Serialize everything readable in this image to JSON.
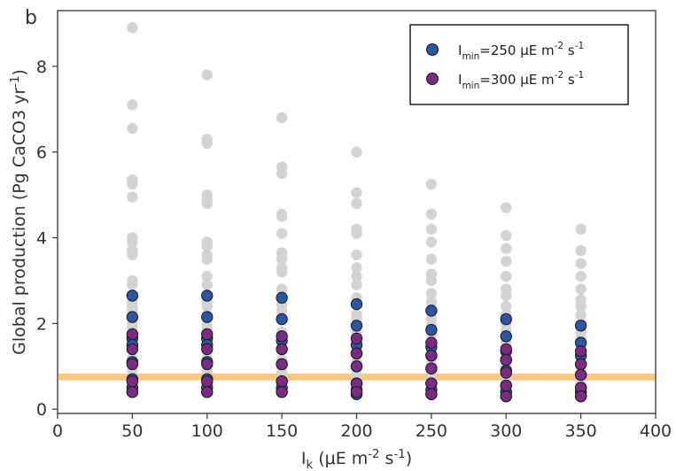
{
  "panel_label": "b",
  "chart_data": {
    "type": "scatter",
    "xlabel": "I_k (μE m^-2 s^-1)",
    "ylabel": "Global production (Pg CaCO3 yr^-1)",
    "xlim": [
      0,
      400
    ],
    "ylim": [
      -0.1,
      9.3
    ],
    "xticks": [
      0,
      50,
      100,
      150,
      200,
      250,
      300,
      350,
      400
    ],
    "yticks": [
      0,
      2,
      4,
      6,
      8
    ],
    "grid": false,
    "legend_position": "top-right",
    "reference_band": {
      "y": 0.75,
      "half_width": 0.08,
      "color": "#fdc77e"
    },
    "series": [
      {
        "color": "#d3d3d3",
        "points": [
          [
            50,
            8.9
          ],
          [
            50,
            7.1
          ],
          [
            50,
            6.55
          ],
          [
            50,
            5.35
          ],
          [
            50,
            5.25
          ],
          [
            50,
            4.95
          ],
          [
            50,
            4.0
          ],
          [
            50,
            3.9
          ],
          [
            50,
            3.7
          ],
          [
            50,
            3.6
          ],
          [
            50,
            3.0
          ],
          [
            50,
            2.9
          ],
          [
            50,
            2.5
          ],
          [
            50,
            2.4
          ],
          [
            50,
            2.3
          ],
          [
            50,
            2.0
          ],
          [
            50,
            1.9
          ],
          [
            50,
            1.2
          ],
          [
            50,
            1.05
          ],
          [
            50,
            0.9
          ],
          [
            50,
            0.55
          ],
          [
            100,
            7.8
          ],
          [
            100,
            6.3
          ],
          [
            100,
            6.2
          ],
          [
            100,
            5.0
          ],
          [
            100,
            4.9
          ],
          [
            100,
            4.8
          ],
          [
            100,
            3.9
          ],
          [
            100,
            3.8
          ],
          [
            100,
            3.6
          ],
          [
            100,
            3.5
          ],
          [
            100,
            3.1
          ],
          [
            100,
            2.9
          ],
          [
            100,
            2.5
          ],
          [
            100,
            2.4
          ],
          [
            100,
            2.2
          ],
          [
            100,
            1.95
          ],
          [
            100,
            1.85
          ],
          [
            100,
            1.2
          ],
          [
            100,
            1.05
          ],
          [
            100,
            0.9
          ],
          [
            100,
            0.55
          ],
          [
            150,
            6.8
          ],
          [
            150,
            5.65
          ],
          [
            150,
            5.5
          ],
          [
            150,
            4.55
          ],
          [
            150,
            4.5
          ],
          [
            150,
            4.1
          ],
          [
            150,
            3.65
          ],
          [
            150,
            3.5
          ],
          [
            150,
            3.3
          ],
          [
            150,
            3.2
          ],
          [
            150,
            2.8
          ],
          [
            150,
            2.6
          ],
          [
            150,
            2.45
          ],
          [
            150,
            2.3
          ],
          [
            150,
            2.1
          ],
          [
            150,
            1.8
          ],
          [
            150,
            1.7
          ],
          [
            150,
            1.15
          ],
          [
            150,
            1.0
          ],
          [
            150,
            0.85
          ],
          [
            150,
            0.5
          ],
          [
            200,
            6.0
          ],
          [
            200,
            5.05
          ],
          [
            200,
            4.8
          ],
          [
            200,
            4.2
          ],
          [
            200,
            4.1
          ],
          [
            200,
            3.6
          ],
          [
            200,
            3.3
          ],
          [
            200,
            3.1
          ],
          [
            200,
            2.9
          ],
          [
            200,
            2.6
          ],
          [
            200,
            2.45
          ],
          [
            200,
            2.2
          ],
          [
            200,
            2.1
          ],
          [
            200,
            1.8
          ],
          [
            200,
            1.6
          ],
          [
            200,
            1.45
          ],
          [
            200,
            1.1
          ],
          [
            200,
            0.95
          ],
          [
            200,
            0.8
          ],
          [
            200,
            0.5
          ],
          [
            250,
            5.25
          ],
          [
            250,
            4.55
          ],
          [
            250,
            4.2
          ],
          [
            250,
            3.9
          ],
          [
            250,
            3.5
          ],
          [
            250,
            3.15
          ],
          [
            250,
            3.0
          ],
          [
            250,
            2.7
          ],
          [
            250,
            2.5
          ],
          [
            250,
            2.3
          ],
          [
            250,
            2.1
          ],
          [
            250,
            1.95
          ],
          [
            250,
            1.75
          ],
          [
            250,
            1.5
          ],
          [
            250,
            1.35
          ],
          [
            250,
            1.05
          ],
          [
            250,
            0.9
          ],
          [
            250,
            0.75
          ],
          [
            250,
            0.45
          ],
          [
            300,
            4.7
          ],
          [
            300,
            4.05
          ],
          [
            300,
            3.75
          ],
          [
            300,
            3.45
          ],
          [
            300,
            3.1
          ],
          [
            300,
            2.8
          ],
          [
            300,
            2.65
          ],
          [
            300,
            2.4
          ],
          [
            300,
            2.2
          ],
          [
            300,
            2.0
          ],
          [
            300,
            1.85
          ],
          [
            300,
            1.7
          ],
          [
            300,
            1.55
          ],
          [
            300,
            1.35
          ],
          [
            300,
            1.2
          ],
          [
            300,
            1.0
          ],
          [
            300,
            0.8
          ],
          [
            300,
            0.65
          ],
          [
            300,
            0.4
          ],
          [
            350,
            4.2
          ],
          [
            350,
            3.7
          ],
          [
            350,
            3.4
          ],
          [
            350,
            3.1
          ],
          [
            350,
            2.8
          ],
          [
            350,
            2.55
          ],
          [
            350,
            2.4
          ],
          [
            350,
            2.2
          ],
          [
            350,
            2.0
          ],
          [
            350,
            1.8
          ],
          [
            350,
            1.65
          ],
          [
            350,
            1.5
          ],
          [
            350,
            1.4
          ],
          [
            350,
            1.2
          ],
          [
            350,
            1.05
          ],
          [
            350,
            0.9
          ],
          [
            350,
            0.75
          ],
          [
            350,
            0.6
          ],
          [
            350,
            0.35
          ]
        ]
      },
      {
        "name": "I_min=250 μE m^-2 s^-1",
        "color": "#2b56a4",
        "points": [
          [
            50,
            2.65
          ],
          [
            50,
            2.15
          ],
          [
            50,
            1.65
          ],
          [
            50,
            1.5
          ],
          [
            50,
            1.1
          ],
          [
            50,
            0.7
          ],
          [
            50,
            0.5
          ],
          [
            50,
            0.4
          ],
          [
            100,
            2.65
          ],
          [
            100,
            2.15
          ],
          [
            100,
            1.65
          ],
          [
            100,
            1.5
          ],
          [
            100,
            1.1
          ],
          [
            100,
            0.7
          ],
          [
            100,
            0.5
          ],
          [
            100,
            0.4
          ],
          [
            150,
            2.6
          ],
          [
            150,
            2.1
          ],
          [
            150,
            1.6
          ],
          [
            150,
            1.4
          ],
          [
            150,
            1.05
          ],
          [
            150,
            0.65
          ],
          [
            150,
            0.5
          ],
          [
            150,
            0.4
          ],
          [
            200,
            2.45
          ],
          [
            200,
            1.95
          ],
          [
            200,
            1.5
          ],
          [
            200,
            1.3
          ],
          [
            200,
            1.0
          ],
          [
            200,
            0.6
          ],
          [
            200,
            0.45
          ],
          [
            200,
            0.35
          ],
          [
            250,
            2.3
          ],
          [
            250,
            1.85
          ],
          [
            250,
            1.45
          ],
          [
            250,
            1.25
          ],
          [
            250,
            0.95
          ],
          [
            250,
            0.6
          ],
          [
            250,
            0.45
          ],
          [
            250,
            0.35
          ],
          [
            300,
            2.1
          ],
          [
            300,
            1.7
          ],
          [
            300,
            1.35
          ],
          [
            300,
            1.15
          ],
          [
            300,
            0.9
          ],
          [
            300,
            0.55
          ],
          [
            300,
            0.4
          ],
          [
            300,
            0.3
          ],
          [
            350,
            1.95
          ],
          [
            350,
            1.55
          ],
          [
            350,
            1.25
          ],
          [
            350,
            1.05
          ],
          [
            350,
            0.8
          ],
          [
            350,
            0.5
          ],
          [
            350,
            0.4
          ],
          [
            350,
            0.3
          ]
        ]
      },
      {
        "name": "I_min=300 μE m^-2 s^-1",
        "color": "#7b2a85",
        "points": [
          [
            50,
            1.75
          ],
          [
            50,
            1.4
          ],
          [
            50,
            1.05
          ],
          [
            50,
            0.65
          ],
          [
            50,
            0.4
          ],
          [
            100,
            1.75
          ],
          [
            100,
            1.4
          ],
          [
            100,
            1.05
          ],
          [
            100,
            0.65
          ],
          [
            100,
            0.4
          ],
          [
            150,
            1.7
          ],
          [
            150,
            1.4
          ],
          [
            150,
            1.05
          ],
          [
            150,
            0.65
          ],
          [
            150,
            0.4
          ],
          [
            200,
            1.65
          ],
          [
            200,
            1.3
          ],
          [
            200,
            1.0
          ],
          [
            200,
            0.6
          ],
          [
            200,
            0.4
          ],
          [
            250,
            1.55
          ],
          [
            250,
            1.25
          ],
          [
            250,
            0.95
          ],
          [
            250,
            0.6
          ],
          [
            250,
            0.35
          ],
          [
            300,
            1.4
          ],
          [
            300,
            1.15
          ],
          [
            300,
            0.85
          ],
          [
            300,
            0.55
          ],
          [
            300,
            0.3
          ],
          [
            350,
            1.35
          ],
          [
            350,
            1.05
          ],
          [
            350,
            0.8
          ],
          [
            350,
            0.5
          ],
          [
            350,
            0.3
          ]
        ]
      }
    ]
  }
}
